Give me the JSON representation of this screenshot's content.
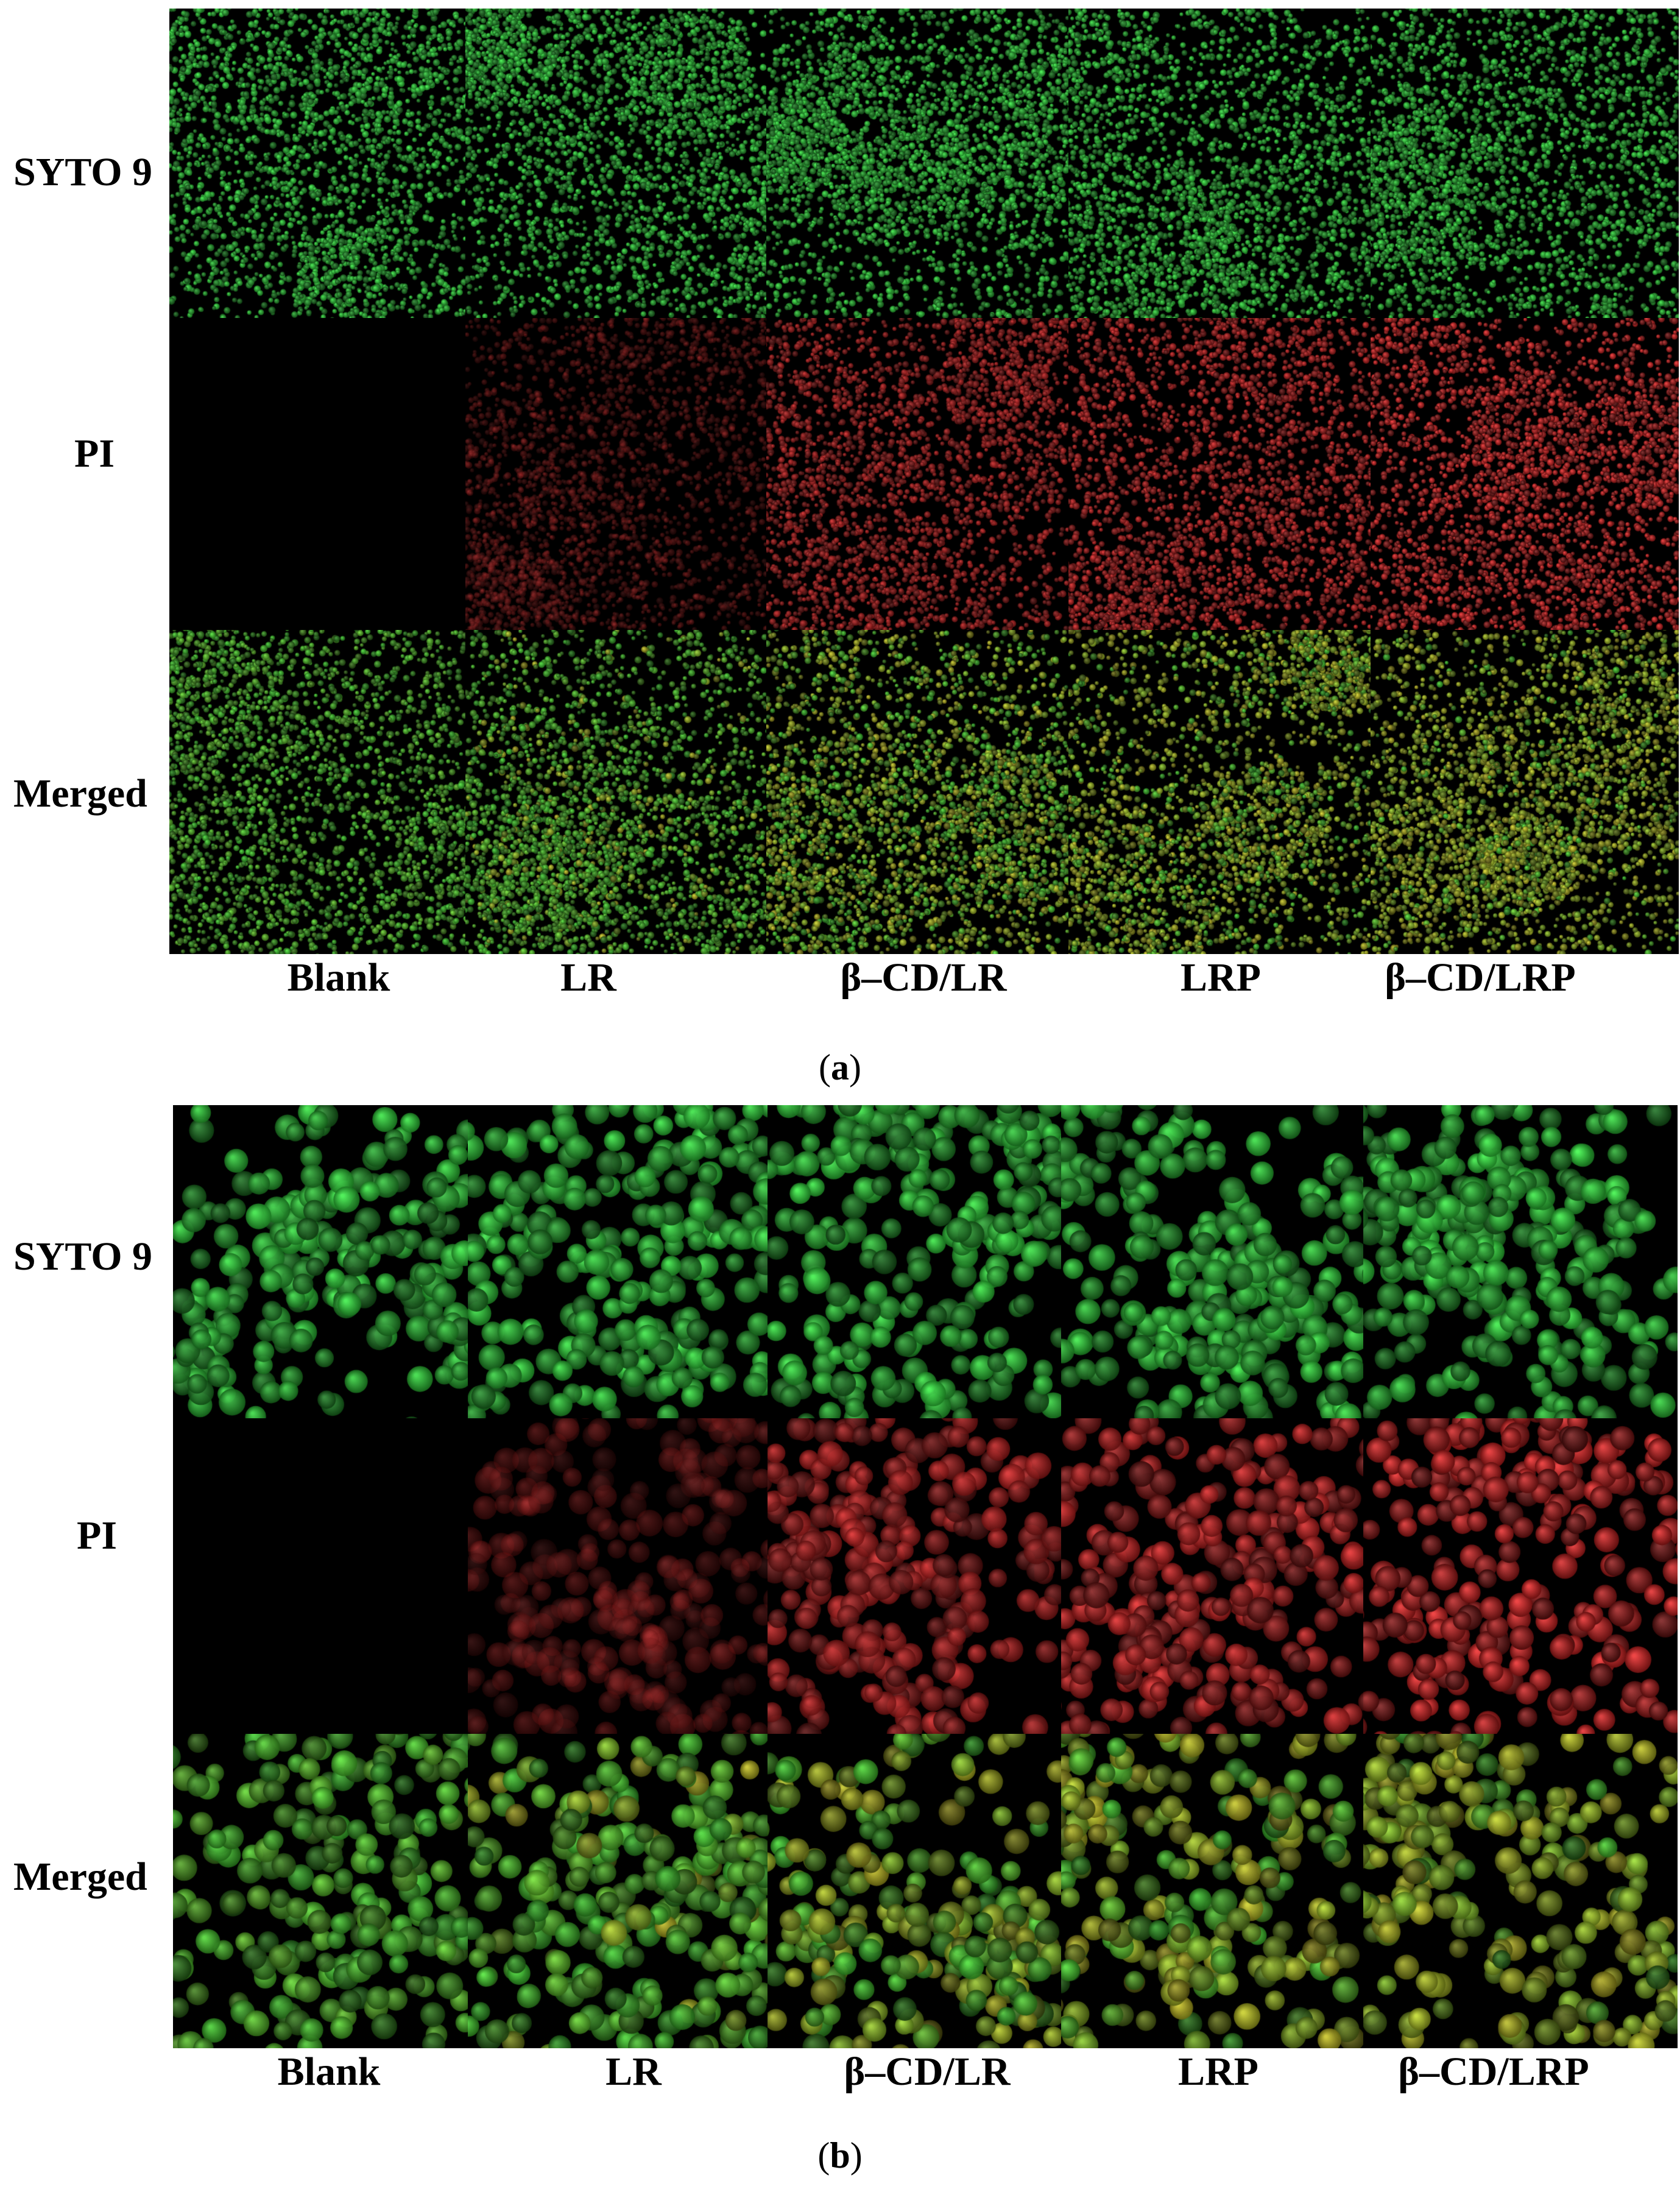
{
  "panels": [
    {
      "id": "a",
      "caption_open": "(",
      "caption_letter": "a",
      "caption_close": ")",
      "rows": [
        "SYTO 9",
        "PI",
        "Merged"
      ],
      "columns": [
        "Blank",
        "LR",
        "β–CD/LR",
        "LRP",
        "β–CD/LRP"
      ],
      "style": "fine"
    },
    {
      "id": "b",
      "caption_open": "(",
      "caption_letter": "b",
      "caption_close": ")",
      "rows": [
        "SYTO 9",
        "PI",
        "Merged"
      ],
      "columns": [
        "Blank",
        "LR",
        "β–CD/LR",
        "LRP",
        "β–CD/LRP"
      ],
      "style": "coarse"
    }
  ],
  "colors": {
    "syto9": "#2fd83a",
    "pi": "#c81e1e",
    "merged_low": "#3acb2c",
    "merged_high": "#c9c21f",
    "background": "#000000"
  },
  "pi_intensity": [
    0,
    0.35,
    0.8,
    0.9,
    1.0
  ],
  "merge_mix": [
    0,
    0.15,
    0.55,
    0.7,
    0.85
  ]
}
